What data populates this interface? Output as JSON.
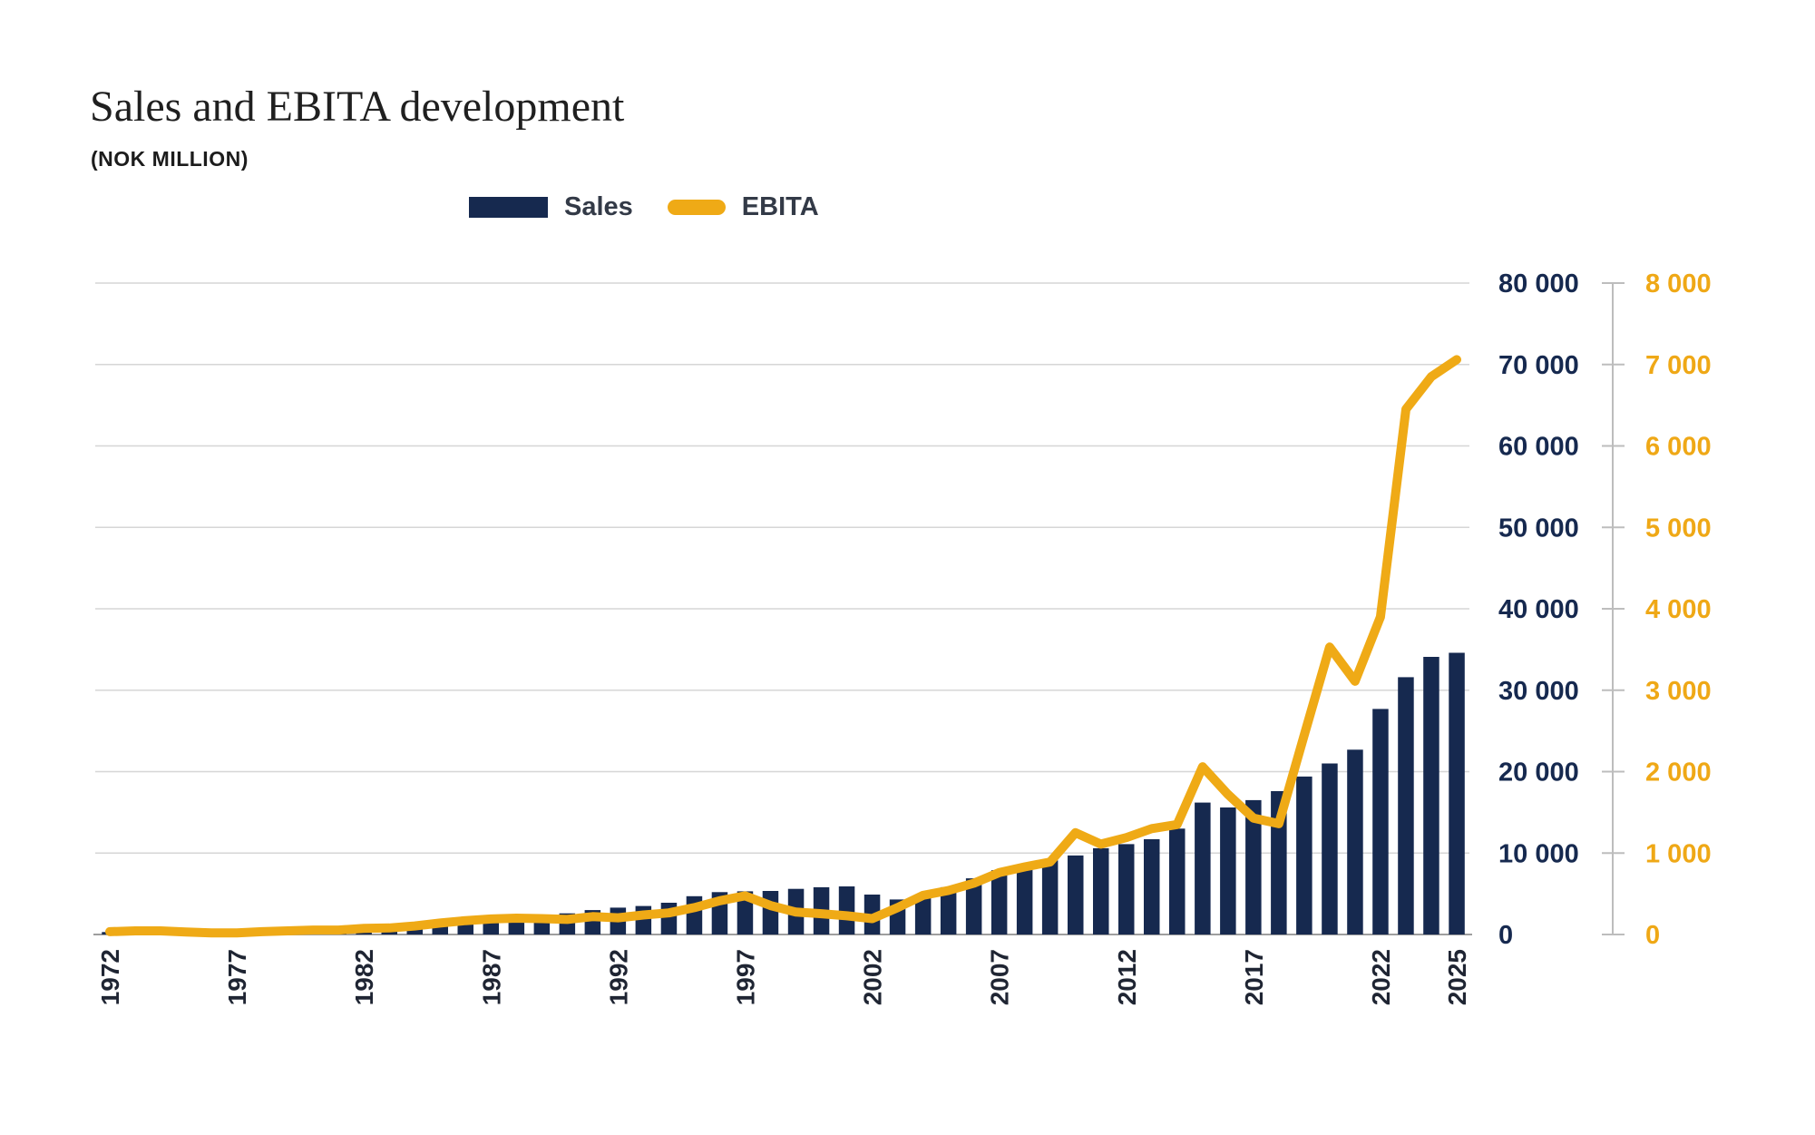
{
  "title": "Sales and EBITA development",
  "subtitle": "(NOK MILLION)",
  "legend": {
    "items": [
      {
        "label": "Sales",
        "type": "bar",
        "color": "#16294F"
      },
      {
        "label": "EBITA",
        "type": "line",
        "color": "#EFAA16"
      }
    ]
  },
  "chart_data": {
    "type": "combo-bar-line",
    "title": "Sales and EBITA development",
    "subtitle": "(NOK MILLION)",
    "grid": "horizontal",
    "background": "#FFFFFF",
    "categories": [
      1972,
      1973,
      1974,
      1975,
      1976,
      1977,
      1978,
      1979,
      1980,
      1981,
      1982,
      1983,
      1984,
      1985,
      1986,
      1987,
      1988,
      1989,
      1990,
      1991,
      1992,
      1993,
      1994,
      1995,
      1996,
      1997,
      1998,
      1999,
      2000,
      2001,
      2002,
      2003,
      2004,
      2005,
      2006,
      2007,
      2008,
      2009,
      2010,
      2011,
      2012,
      2013,
      2014,
      2015,
      2016,
      2017,
      2018,
      2019,
      2020,
      2021,
      2022,
      2023,
      2024,
      2025
    ],
    "series": [
      {
        "name": "Sales",
        "type": "bar",
        "axis": "left",
        "color": "#16294F",
        "values": [
          300,
          330,
          380,
          450,
          550,
          650,
          700,
          750,
          800,
          850,
          950,
          1100,
          1400,
          1650,
          1850,
          2100,
          2400,
          2450,
          2600,
          3000,
          3300,
          3500,
          3900,
          4700,
          5200,
          5300,
          5350,
          5600,
          5800,
          5900,
          4900,
          4300,
          4800,
          5800,
          6900,
          7900,
          8500,
          9100,
          9700,
          10600,
          11100,
          11700,
          13000,
          16200,
          15600,
          16500,
          17600,
          19400,
          21000,
          22700,
          27700,
          31600,
          34100,
          34600
        ]
      },
      {
        "name": "EBITA",
        "type": "line",
        "axis": "right",
        "color": "#EFAA16",
        "values": [
          35,
          45,
          45,
          30,
          20,
          20,
          35,
          45,
          55,
          55,
          75,
          80,
          105,
          140,
          170,
          190,
          200,
          195,
          185,
          220,
          205,
          240,
          265,
          330,
          415,
          475,
          355,
          275,
          255,
          230,
          195,
          330,
          480,
          540,
          630,
          760,
          830,
          890,
          1250,
          1110,
          1190,
          1300,
          1350,
          2060,
          1720,
          1430,
          1360,
          2450,
          3530,
          3110,
          3900,
          6450,
          6850,
          7060
        ]
      }
    ],
    "left_axis": {
      "min": 0,
      "max": 80000,
      "step": 10000,
      "color": "#16294F",
      "tick_labels": [
        "80 000",
        "70 000",
        "60 000",
        "50 000",
        "40 000",
        "30 000",
        "20 000",
        "10 000",
        "0"
      ]
    },
    "right_axis": {
      "min": 0,
      "max": 8000,
      "step": 1000,
      "color": "#EFA816",
      "tick_labels": [
        "8 000",
        "7 000",
        "6 000",
        "5 000",
        "4 000",
        "3 000",
        "2 000",
        "1 000",
        "0"
      ]
    },
    "x_tick_years": [
      1972,
      1977,
      1982,
      1987,
      1992,
      1997,
      2002,
      2007,
      2012,
      2017,
      2022,
      2025
    ],
    "x_label_color": "#1f2533",
    "gridline_color": "#D6D6D6",
    "baseline_color": "#9E9E9E",
    "spine_color": "#BDBDBD"
  }
}
